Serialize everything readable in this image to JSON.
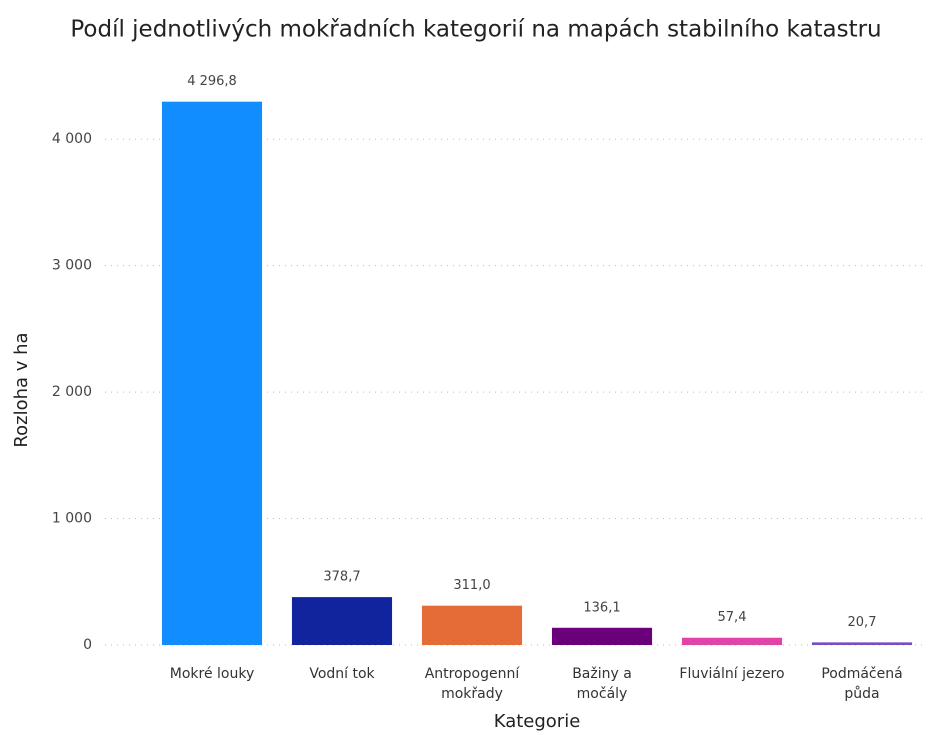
{
  "chart_data": {
    "type": "bar",
    "title": "Podíl jednotlivých mokřadních kategorií na mapách stabilního katastru",
    "x_label": "Kategorie",
    "y_label": "Rozloha v ha",
    "categories": [
      "Mokré louky",
      "Vodní tok",
      "Antropogenní\nmokřady",
      "Bažiny a\nmočály",
      "Fluviální jezero",
      "Podmáčená\npůda"
    ],
    "values": [
      4296.8,
      378.7,
      311.0,
      136.1,
      57.4,
      20.7
    ],
    "value_labels": [
      "4 296,8",
      "378,7",
      "311,0",
      "136,1",
      "57,4",
      "20,7"
    ],
    "colors": [
      "#118dff",
      "#12239e",
      "#e66c37",
      "#6b007b",
      "#e044a7",
      "#744ec2"
    ],
    "ylim": [
      0,
      4500
    ],
    "yticks": [
      0,
      {
        "value": 1000,
        "label": "1 000"
      },
      {
        "value": 2000,
        "label": "2 000"
      },
      {
        "value": 3000,
        "label": "3 000"
      },
      {
        "value": 4000,
        "label": "4 000"
      }
    ],
    "grid": true
  }
}
